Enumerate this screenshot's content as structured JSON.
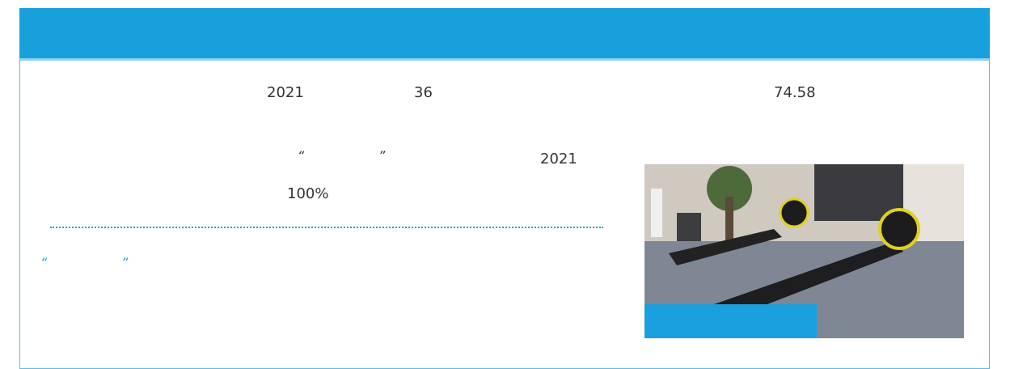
{
  "paragraph1": {
    "year": "2021",
    "count": "36",
    "amount": "74.58"
  },
  "paragraph2": {
    "open_quote": "“",
    "close_quote": "”",
    "year": "2021",
    "rate": "100%"
  },
  "section": {
    "open_quote": "“",
    "close_quote": "”"
  }
}
